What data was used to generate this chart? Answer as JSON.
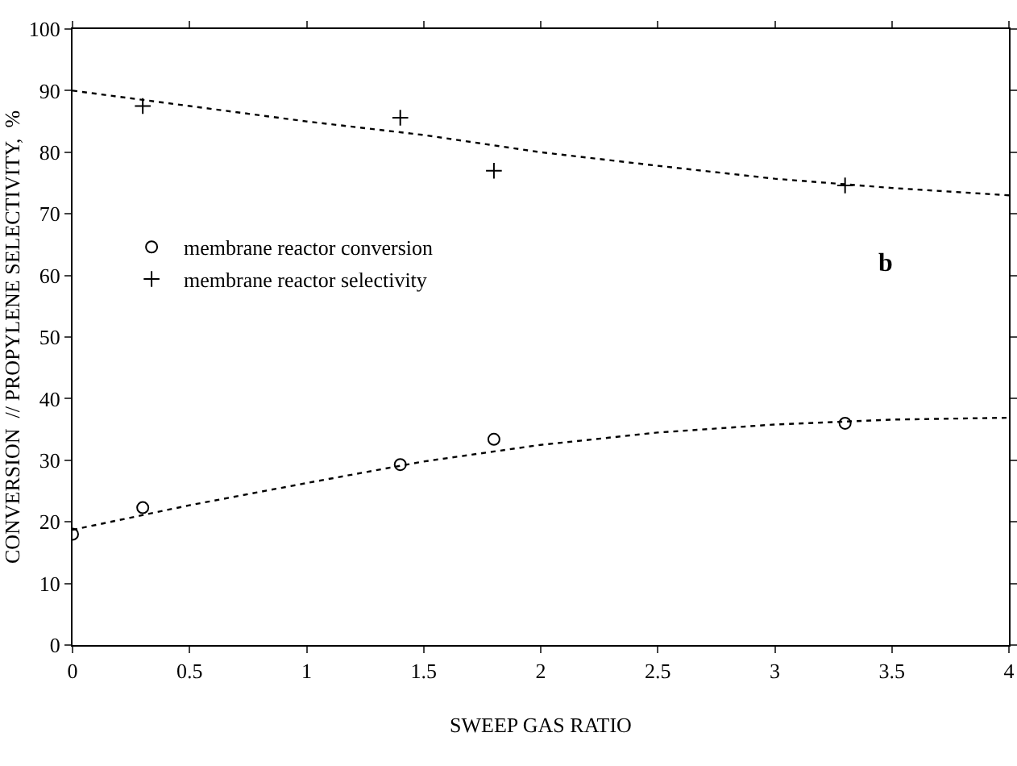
{
  "chart_data": {
    "type": "scatter",
    "xlabel": "SWEEP GAS RATIO",
    "ylabel": "CONVERSION  // PROPYLENE SELECTIVITY,  %",
    "xlim": [
      0,
      4
    ],
    "xticks": [
      0,
      0.5,
      1,
      1.5,
      2,
      2.5,
      3,
      3.5,
      4
    ],
    "ylim": [
      0,
      100
    ],
    "yticks": [
      0,
      10,
      20,
      30,
      40,
      50,
      60,
      70,
      80,
      90,
      100
    ],
    "grid": false,
    "legend": "left",
    "annotations": [
      "b"
    ],
    "series": [
      {
        "name": "membrane reactor conversion",
        "type": "scatter",
        "marker": "circle",
        "color": "#000000",
        "x": [
          0,
          0.3,
          1.4,
          1.8,
          3.3
        ],
        "values": [
          18,
          22.3,
          29.3,
          33.4,
          36
        ]
      },
      {
        "name": "membrane reactor selectivity",
        "type": "scatter",
        "marker": "cross",
        "color": "#000000",
        "x": [
          0.3,
          1.4,
          1.8,
          3.3
        ],
        "values": [
          87.5,
          85.6,
          77,
          74.6
        ]
      },
      {
        "type": "line",
        "line_style": "dotted",
        "marker": "none",
        "color": "#000000",
        "x": [
          0,
          0.5,
          1,
          1.5,
          2,
          2.5,
          3,
          3.5,
          4
        ],
        "values": [
          18.7,
          22.7,
          26.3,
          29.8,
          32.5,
          34.5,
          35.8,
          36.6,
          36.9
        ]
      },
      {
        "type": "line",
        "line_style": "dotted",
        "marker": "none",
        "color": "#000000",
        "x": [
          0,
          0.5,
          1,
          1.5,
          2,
          2.5,
          3,
          3.5,
          4
        ],
        "values": [
          90,
          87.5,
          85,
          82.8,
          80,
          77.8,
          75.7,
          74.2,
          73
        ]
      }
    ]
  }
}
